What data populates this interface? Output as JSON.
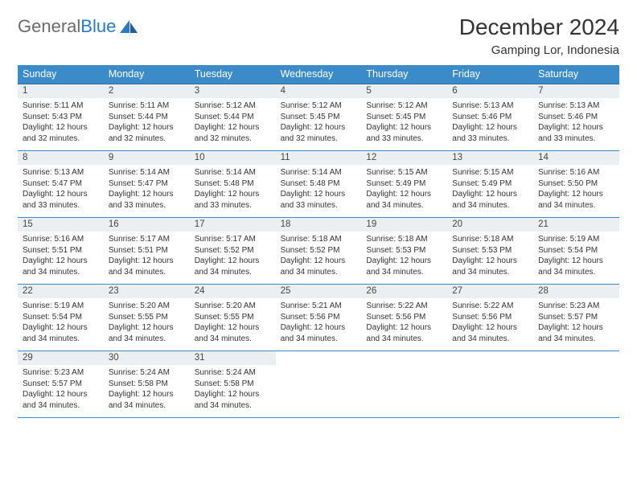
{
  "logo": {
    "word1": "General",
    "word2": "Blue"
  },
  "title": "December 2024",
  "location": "Gamping Lor, Indonesia",
  "colors": {
    "header_bg": "#3b8bc9",
    "header_border": "#2a6ea3",
    "week_border": "#3b8bc9",
    "date_bar_bg": "#eceff1",
    "logo_gray": "#6a6a6a",
    "logo_blue": "#2a7ac0"
  },
  "day_names": [
    "Sunday",
    "Monday",
    "Tuesday",
    "Wednesday",
    "Thursday",
    "Friday",
    "Saturday"
  ],
  "weeks": [
    [
      {
        "date": "1",
        "sunrise": "5:11 AM",
        "sunset": "5:43 PM",
        "dl_h": "12",
        "dl_m": "32"
      },
      {
        "date": "2",
        "sunrise": "5:11 AM",
        "sunset": "5:44 PM",
        "dl_h": "12",
        "dl_m": "32"
      },
      {
        "date": "3",
        "sunrise": "5:12 AM",
        "sunset": "5:44 PM",
        "dl_h": "12",
        "dl_m": "32"
      },
      {
        "date": "4",
        "sunrise": "5:12 AM",
        "sunset": "5:45 PM",
        "dl_h": "12",
        "dl_m": "32"
      },
      {
        "date": "5",
        "sunrise": "5:12 AM",
        "sunset": "5:45 PM",
        "dl_h": "12",
        "dl_m": "33"
      },
      {
        "date": "6",
        "sunrise": "5:13 AM",
        "sunset": "5:46 PM",
        "dl_h": "12",
        "dl_m": "33"
      },
      {
        "date": "7",
        "sunrise": "5:13 AM",
        "sunset": "5:46 PM",
        "dl_h": "12",
        "dl_m": "33"
      }
    ],
    [
      {
        "date": "8",
        "sunrise": "5:13 AM",
        "sunset": "5:47 PM",
        "dl_h": "12",
        "dl_m": "33"
      },
      {
        "date": "9",
        "sunrise": "5:14 AM",
        "sunset": "5:47 PM",
        "dl_h": "12",
        "dl_m": "33"
      },
      {
        "date": "10",
        "sunrise": "5:14 AM",
        "sunset": "5:48 PM",
        "dl_h": "12",
        "dl_m": "33"
      },
      {
        "date": "11",
        "sunrise": "5:14 AM",
        "sunset": "5:48 PM",
        "dl_h": "12",
        "dl_m": "33"
      },
      {
        "date": "12",
        "sunrise": "5:15 AM",
        "sunset": "5:49 PM",
        "dl_h": "12",
        "dl_m": "34"
      },
      {
        "date": "13",
        "sunrise": "5:15 AM",
        "sunset": "5:49 PM",
        "dl_h": "12",
        "dl_m": "34"
      },
      {
        "date": "14",
        "sunrise": "5:16 AM",
        "sunset": "5:50 PM",
        "dl_h": "12",
        "dl_m": "34"
      }
    ],
    [
      {
        "date": "15",
        "sunrise": "5:16 AM",
        "sunset": "5:51 PM",
        "dl_h": "12",
        "dl_m": "34"
      },
      {
        "date": "16",
        "sunrise": "5:17 AM",
        "sunset": "5:51 PM",
        "dl_h": "12",
        "dl_m": "34"
      },
      {
        "date": "17",
        "sunrise": "5:17 AM",
        "sunset": "5:52 PM",
        "dl_h": "12",
        "dl_m": "34"
      },
      {
        "date": "18",
        "sunrise": "5:18 AM",
        "sunset": "5:52 PM",
        "dl_h": "12",
        "dl_m": "34"
      },
      {
        "date": "19",
        "sunrise": "5:18 AM",
        "sunset": "5:53 PM",
        "dl_h": "12",
        "dl_m": "34"
      },
      {
        "date": "20",
        "sunrise": "5:18 AM",
        "sunset": "5:53 PM",
        "dl_h": "12",
        "dl_m": "34"
      },
      {
        "date": "21",
        "sunrise": "5:19 AM",
        "sunset": "5:54 PM",
        "dl_h": "12",
        "dl_m": "34"
      }
    ],
    [
      {
        "date": "22",
        "sunrise": "5:19 AM",
        "sunset": "5:54 PM",
        "dl_h": "12",
        "dl_m": "34"
      },
      {
        "date": "23",
        "sunrise": "5:20 AM",
        "sunset": "5:55 PM",
        "dl_h": "12",
        "dl_m": "34"
      },
      {
        "date": "24",
        "sunrise": "5:20 AM",
        "sunset": "5:55 PM",
        "dl_h": "12",
        "dl_m": "34"
      },
      {
        "date": "25",
        "sunrise": "5:21 AM",
        "sunset": "5:56 PM",
        "dl_h": "12",
        "dl_m": "34"
      },
      {
        "date": "26",
        "sunrise": "5:22 AM",
        "sunset": "5:56 PM",
        "dl_h": "12",
        "dl_m": "34"
      },
      {
        "date": "27",
        "sunrise": "5:22 AM",
        "sunset": "5:56 PM",
        "dl_h": "12",
        "dl_m": "34"
      },
      {
        "date": "28",
        "sunrise": "5:23 AM",
        "sunset": "5:57 PM",
        "dl_h": "12",
        "dl_m": "34"
      }
    ],
    [
      {
        "date": "29",
        "sunrise": "5:23 AM",
        "sunset": "5:57 PM",
        "dl_h": "12",
        "dl_m": "34"
      },
      {
        "date": "30",
        "sunrise": "5:24 AM",
        "sunset": "5:58 PM",
        "dl_h": "12",
        "dl_m": "34"
      },
      {
        "date": "31",
        "sunrise": "5:24 AM",
        "sunset": "5:58 PM",
        "dl_h": "12",
        "dl_m": "34"
      },
      {
        "empty": true
      },
      {
        "empty": true
      },
      {
        "empty": true
      },
      {
        "empty": true
      }
    ]
  ],
  "labels": {
    "sunrise_prefix": "Sunrise: ",
    "sunset_prefix": "Sunset: ",
    "daylight_prefix": "Daylight: ",
    "hours_word": " hours",
    "and_word": "and ",
    "minutes_word": " minutes."
  }
}
